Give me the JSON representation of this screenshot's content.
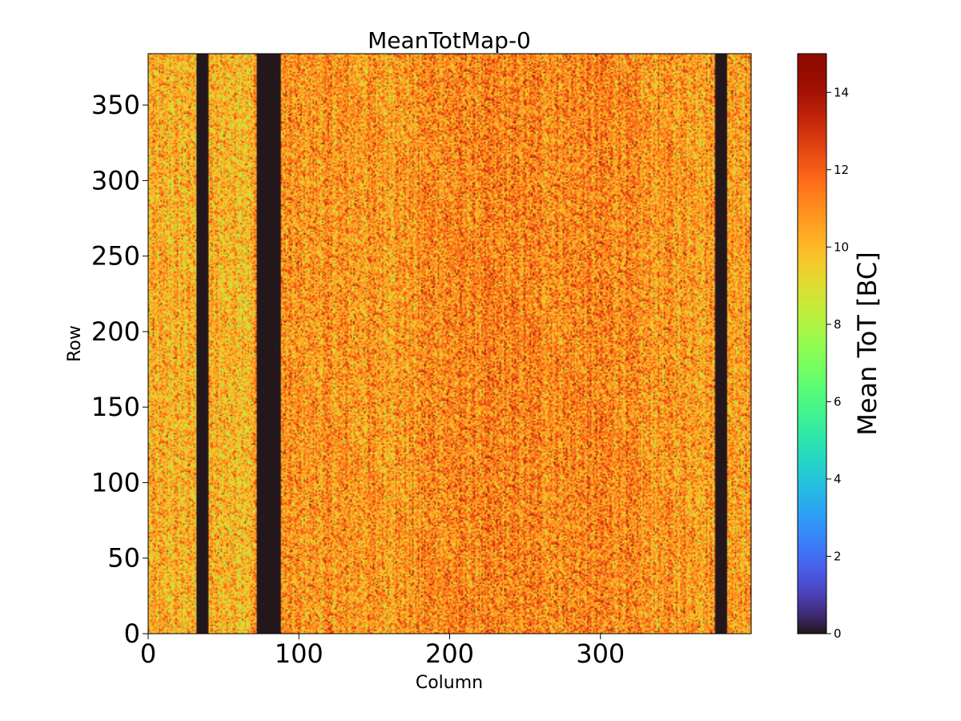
{
  "chart_data": {
    "type": "heatmap",
    "title": "MeanTotMap-0",
    "xlabel": "Column",
    "ylabel": "Row",
    "xlim": [
      0,
      400
    ],
    "ylim": [
      0,
      384
    ],
    "x_ticks": [
      0,
      100,
      200,
      300
    ],
    "x_tick_labels": [
      "0",
      "100",
      "200",
      "300"
    ],
    "y_ticks": [
      0,
      50,
      100,
      150,
      200,
      250,
      300,
      350
    ],
    "y_tick_labels": [
      "0",
      "50",
      "100",
      "150",
      "200",
      "250",
      "300",
      "350"
    ],
    "n_columns": 400,
    "n_rows": 384,
    "typical_value_range": [
      8,
      14
    ],
    "typical_mean_value": 10.8,
    "zero_value_column_ranges": [
      [
        32,
        40
      ],
      [
        72,
        88
      ],
      [
        376,
        384
      ]
    ],
    "colorbar": {
      "label": "Mean ToT [BC]",
      "range": [
        0,
        15
      ],
      "ticks": [
        0,
        2,
        4,
        6,
        8,
        10,
        12,
        14
      ],
      "tick_labels": [
        "0",
        "2",
        "4",
        "6",
        "8",
        "10",
        "12",
        "14"
      ],
      "colormap": "turbo"
    }
  }
}
